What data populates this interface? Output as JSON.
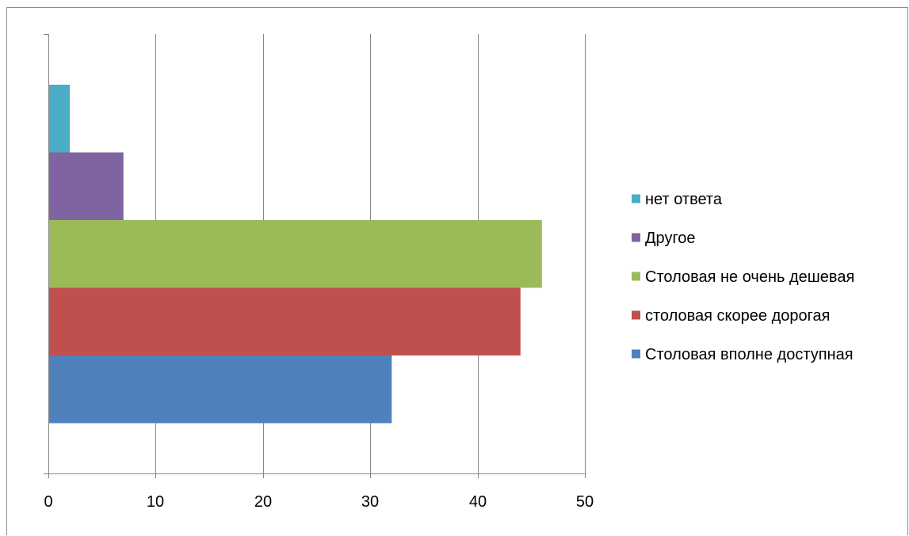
{
  "chart_data": {
    "type": "bar",
    "orientation": "horizontal",
    "series": [
      {
        "name": "Столовая вполне доступная",
        "value": 32,
        "color": "#4f81bd"
      },
      {
        "name": "столовая скорее дорогая",
        "value": 44,
        "color": "#c0504d"
      },
      {
        "name": "Столовая не очень дешевая",
        "value": 46,
        "color": "#9bbb59"
      },
      {
        "name": "Другое",
        "value": 7,
        "color": "#8064a2"
      },
      {
        "name": "нет ответа",
        "value": 2,
        "color": "#4bacc6"
      }
    ],
    "xlim": [
      0,
      50
    ],
    "xticks": [
      "0",
      "10",
      "20",
      "30",
      "40",
      "50"
    ],
    "grid": true,
    "legend": "right",
    "title": "",
    "xlabel": "",
    "ylabel": ""
  }
}
